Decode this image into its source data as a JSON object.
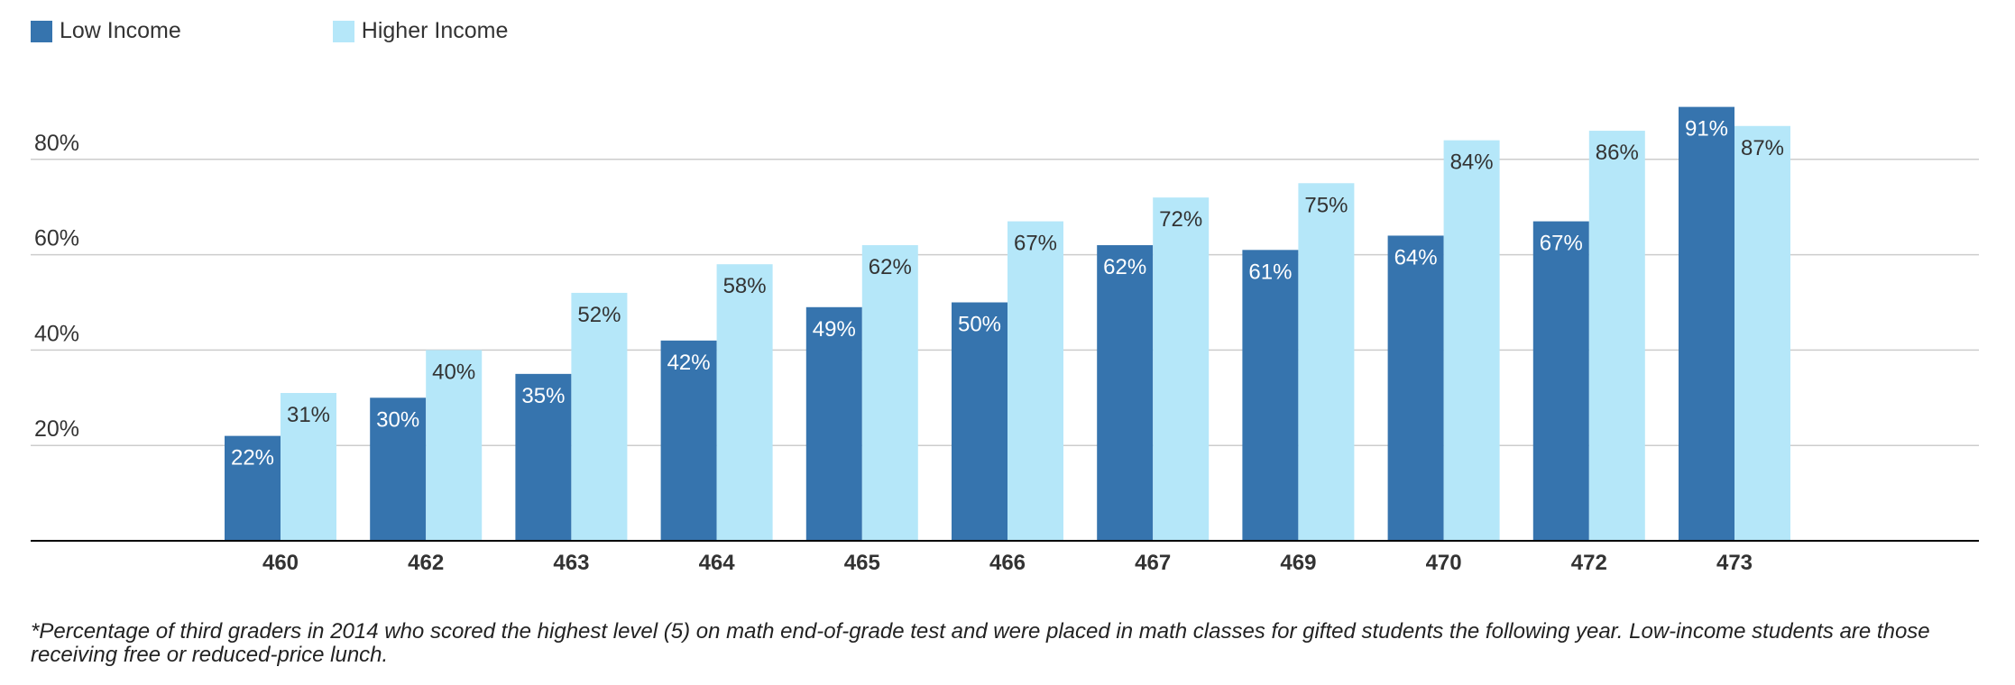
{
  "colors": {
    "low": "#3674ae",
    "high": "#b5e7f9",
    "grid": "#cccccc",
    "axis": "#000000"
  },
  "chart_data": {
    "type": "bar",
    "categories": [
      "460",
      "462",
      "463",
      "464",
      "465",
      "466",
      "467",
      "469",
      "470",
      "472",
      "473"
    ],
    "series": [
      {
        "name": "Low Income",
        "values": [
          22,
          30,
          35,
          42,
          49,
          50,
          62,
          61,
          64,
          67,
          91
        ],
        "labels": [
          "22%",
          "30%",
          "35%",
          "42%",
          "49%",
          "50%",
          "62%",
          "61%",
          "64%",
          "67%",
          "91%"
        ]
      },
      {
        "name": "Higher Income",
        "values": [
          31,
          40,
          52,
          58,
          62,
          67,
          72,
          75,
          84,
          86,
          87
        ],
        "labels": [
          "31%",
          "40%",
          "52%",
          "58%",
          "62%",
          "67%",
          "72%",
          "75%",
          "84%",
          "86%",
          "87%"
        ]
      }
    ],
    "y_ticks": [
      20,
      40,
      60,
      80
    ],
    "y_tick_labels": [
      "20%",
      "40%",
      "60%",
      "80%"
    ],
    "ylim": [
      0,
      100
    ],
    "grid": true,
    "legend": "top-left"
  },
  "footnote": "*Percentage of third graders in 2014 who scored the highest level (5) on math end-of-grade test and were placed in math classes for gifted students the following year. Low-income students are those receiving free or reduced-price lunch."
}
